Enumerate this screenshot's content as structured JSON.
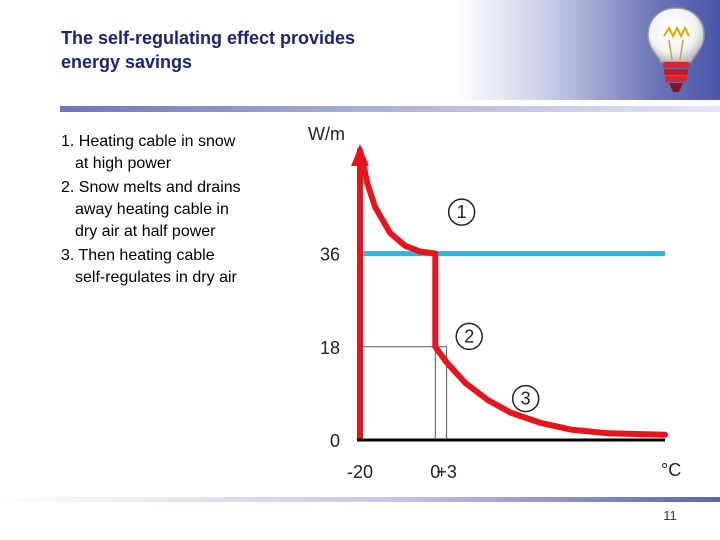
{
  "slide": {
    "title_line1": "The self-regulating effect provides",
    "title_line2": "energy savings",
    "page_number": "11",
    "logo_icon": "lightbulb-icon",
    "accent_color": "#1a237e"
  },
  "bullets": [
    "1. Heating cable in snow at high power",
    "2. Snow melts and drains away heating cable in dry air at half power",
    "3. Then heating cable self-regulates in dry air"
  ],
  "chart_data": {
    "type": "line",
    "title": "",
    "xlabel": "°C",
    "ylabel": "W/m",
    "x_ticks": [
      "-20",
      "0",
      "+3"
    ],
    "y_ticks": [
      "0",
      "18",
      "36"
    ],
    "xlim": [
      -20,
      61
    ],
    "ylim": [
      0,
      56
    ],
    "grid": false,
    "series": [
      {
        "color": "#e8141b",
        "points": [
          [
            -20,
            56
          ],
          [
            -18,
            49.5
          ],
          [
            -16,
            45
          ],
          [
            -12,
            40
          ],
          [
            -8,
            37.5
          ],
          [
            -4,
            36.4
          ],
          [
            0,
            36
          ],
          [
            0,
            18
          ],
          [
            3,
            15
          ],
          [
            8,
            11
          ],
          [
            14,
            7.7
          ],
          [
            20,
            5.3
          ],
          [
            28,
            3.3
          ],
          [
            36,
            2
          ],
          [
            46,
            1.3
          ],
          [
            56,
            1.1
          ],
          [
            61,
            1
          ]
        ]
      }
    ],
    "reference_lines": [
      {
        "axis": "y",
        "value": 36,
        "color": "#29b6e0",
        "from": -20,
        "to": 61
      },
      {
        "axis": "y",
        "value": 18,
        "color": "#555555",
        "from": -20,
        "to": 3
      },
      {
        "axis": "x",
        "value": 0,
        "color": "#555555",
        "from": 0,
        "to": 36
      },
      {
        "axis": "x",
        "value": 3,
        "color": "#555555",
        "from": 0,
        "to": 18
      }
    ],
    "annotations": [
      {
        "label": "1",
        "x": 7,
        "y": 44
      },
      {
        "label": "2",
        "x": 9,
        "y": 20
      },
      {
        "label": "3",
        "x": 24,
        "y": 8
      }
    ]
  }
}
